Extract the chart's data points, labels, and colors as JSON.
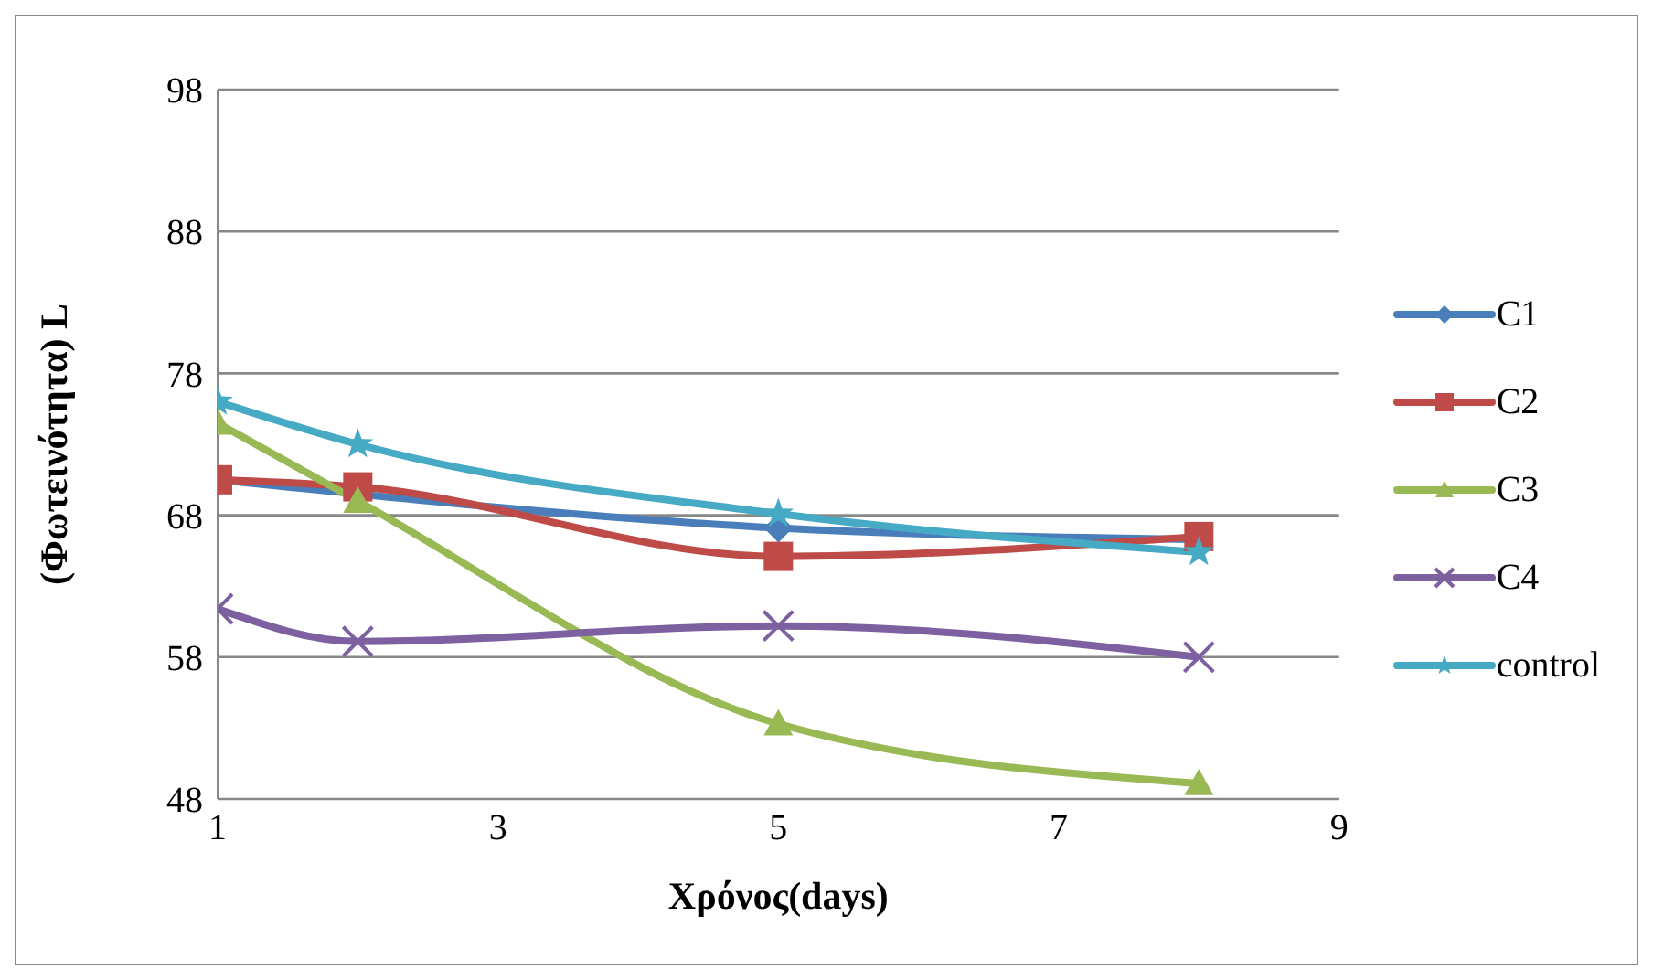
{
  "chart_data": {
    "type": "line",
    "xlabel": "Χρόνος(days)",
    "ylabel": "(Φωτεινότητα) L",
    "x": [
      1,
      2,
      5,
      8
    ],
    "series": [
      {
        "name": "C1",
        "color": "#4a7ebb",
        "marker": "diamond",
        "values": [
          70.5,
          null,
          67.1,
          66.3
        ]
      },
      {
        "name": "C2",
        "color": "#be4b48",
        "marker": "square",
        "values": [
          70.5,
          70,
          65.1,
          66.5
        ]
      },
      {
        "name": "C3",
        "color": "#98b954",
        "marker": "triangle",
        "values": [
          74.5,
          69,
          53.3,
          49.1
        ]
      },
      {
        "name": "C4",
        "color": "#7d60a0",
        "marker": "cross",
        "values": [
          61.4,
          59.1,
          60.2,
          58
        ]
      },
      {
        "name": "control",
        "color": "#46aac5",
        "marker": "star",
        "values": [
          76,
          73,
          68.1,
          65.4
        ]
      }
    ],
    "xlim": [
      1,
      9
    ],
    "xticks": [
      1,
      3,
      5,
      7,
      9
    ],
    "ylim": [
      48,
      98
    ],
    "yticks": [
      48,
      58,
      68,
      78,
      88,
      98
    ],
    "grid": "y",
    "legend": "right",
    "line_style": "solid"
  }
}
